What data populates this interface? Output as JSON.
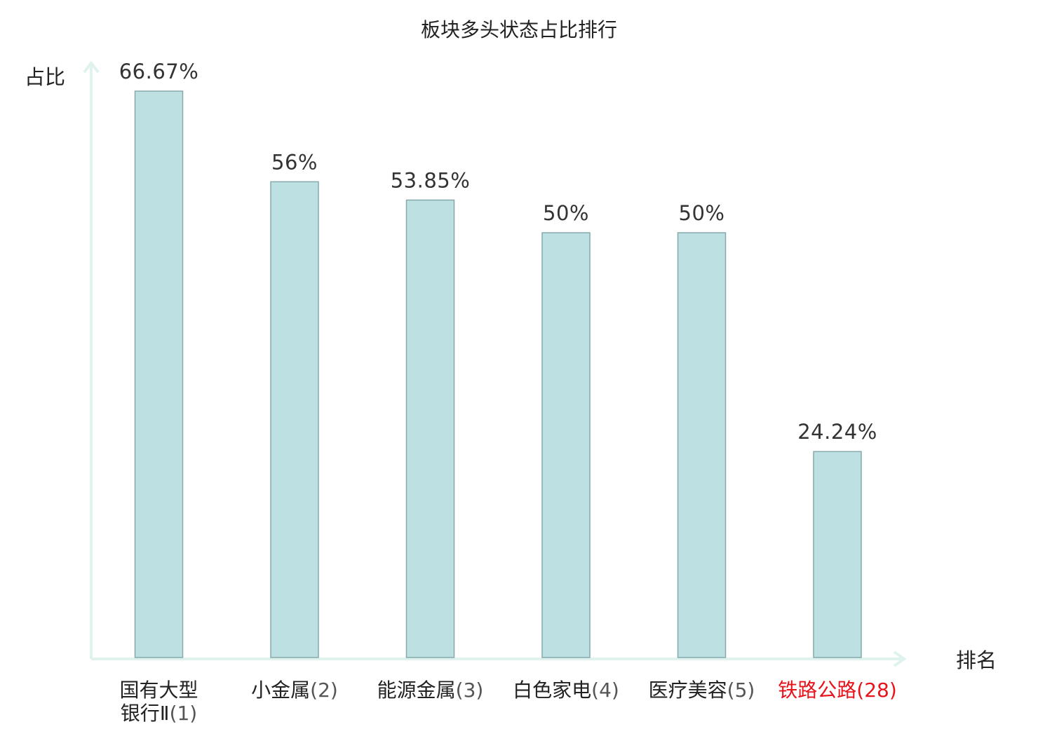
{
  "chart_data": {
    "type": "bar",
    "title": "板块多头状态占比排行",
    "ylabel": "占比",
    "xlabel": "排名",
    "ylim": [
      0,
      70
    ],
    "grid": false,
    "legend": "none",
    "categories": [
      {
        "name": "国有大型银行Ⅱ",
        "name_lines": [
          "国有大型",
          "银行Ⅱ"
        ],
        "rank": "(1)",
        "value": 66.67,
        "label": "66.67%",
        "highlight": false
      },
      {
        "name": "小金属",
        "name_lines": [
          "小金属"
        ],
        "rank": "(2)",
        "value": 56,
        "label": "56%",
        "highlight": false
      },
      {
        "name": "能源金属",
        "name_lines": [
          "能源金属"
        ],
        "rank": "(3)",
        "value": 53.85,
        "label": "53.85%",
        "highlight": false
      },
      {
        "name": "白色家电",
        "name_lines": [
          "白色家电"
        ],
        "rank": "(4)",
        "value": 50,
        "label": "50%",
        "highlight": false
      },
      {
        "name": "医疗美容",
        "name_lines": [
          "医疗美容"
        ],
        "rank": "(5)",
        "value": 50,
        "label": "50%",
        "highlight": false
      },
      {
        "name": "铁路公路",
        "name_lines": [
          "铁路公路"
        ],
        "rank": "(28)",
        "value": 24.24,
        "label": "24.24%",
        "highlight": true
      }
    ],
    "colors": {
      "bar_fill": "#bde0e2",
      "bar_stroke": "#87a9ac",
      "axis": "#dff2ee",
      "highlight": "#e8131a",
      "text": "#333333"
    }
  }
}
